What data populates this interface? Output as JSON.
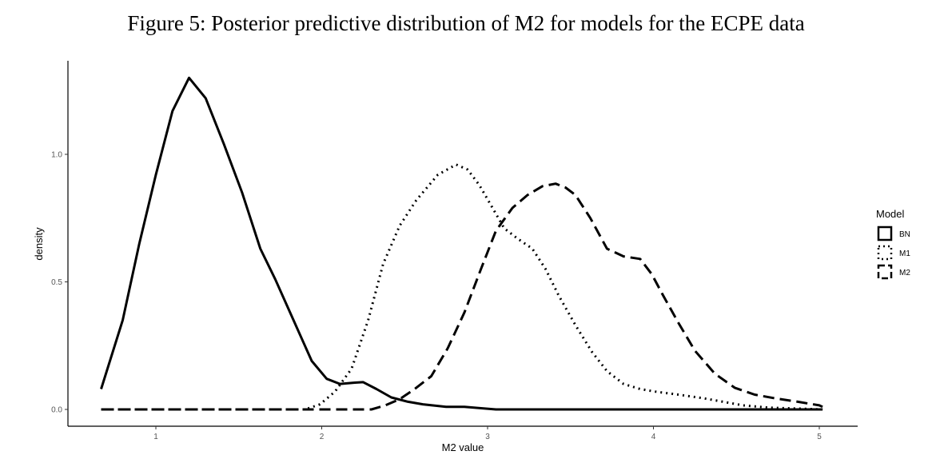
{
  "chart_data": {
    "type": "line",
    "title": "Figure 5: Posterior predictive distribution of M2 for models for the ECPE data",
    "xlabel": "M2 value",
    "ylabel": "density",
    "xlim": [
      0.55,
      5.25
    ],
    "ylim": [
      -0.065,
      1.38
    ],
    "xticks": [
      "1",
      "2",
      "3",
      "4",
      "5"
    ],
    "yticks": [
      "0.0",
      "0.5",
      "1.0"
    ],
    "grid": false,
    "legend": {
      "title": "Model",
      "placement": "right",
      "entries": [
        "BN",
        "M1",
        "M2"
      ]
    },
    "series": [
      {
        "name": "BN",
        "style": "solid",
        "points": [
          [
            0.67,
            0.08
          ],
          [
            0.8,
            0.35
          ],
          [
            0.9,
            0.65
          ],
          [
            1.0,
            0.92
          ],
          [
            1.1,
            1.17
          ],
          [
            1.2,
            1.3
          ],
          [
            1.3,
            1.22
          ],
          [
            1.41,
            1.04
          ],
          [
            1.52,
            0.85
          ],
          [
            1.63,
            0.63
          ],
          [
            1.72,
            0.51
          ],
          [
            1.83,
            0.35
          ],
          [
            1.94,
            0.19
          ],
          [
            2.03,
            0.12
          ],
          [
            2.11,
            0.1
          ],
          [
            2.2,
            0.105
          ],
          [
            2.25,
            0.107
          ],
          [
            2.33,
            0.08
          ],
          [
            2.42,
            0.047
          ],
          [
            2.52,
            0.03
          ],
          [
            2.61,
            0.02
          ],
          [
            2.75,
            0.01
          ],
          [
            2.86,
            0.01
          ],
          [
            3.05,
            0.0
          ],
          [
            5.02,
            0.0
          ]
        ]
      },
      {
        "name": "M1",
        "style": "dotted",
        "points": [
          [
            0.67,
            0.0
          ],
          [
            1.9,
            0.0
          ],
          [
            1.99,
            0.02
          ],
          [
            2.08,
            0.07
          ],
          [
            2.18,
            0.16
          ],
          [
            2.28,
            0.35
          ],
          [
            2.37,
            0.57
          ],
          [
            2.47,
            0.72
          ],
          [
            2.57,
            0.82
          ],
          [
            2.7,
            0.92
          ],
          [
            2.81,
            0.96
          ],
          [
            2.88,
            0.94
          ],
          [
            2.95,
            0.88
          ],
          [
            3.03,
            0.79
          ],
          [
            3.1,
            0.71
          ],
          [
            3.18,
            0.67
          ],
          [
            3.27,
            0.63
          ],
          [
            3.35,
            0.55
          ],
          [
            3.43,
            0.445
          ],
          [
            3.53,
            0.33
          ],
          [
            3.63,
            0.225
          ],
          [
            3.72,
            0.15
          ],
          [
            3.82,
            0.1
          ],
          [
            3.92,
            0.08
          ],
          [
            4.01,
            0.07
          ],
          [
            4.15,
            0.058
          ],
          [
            4.3,
            0.044
          ],
          [
            4.42,
            0.03
          ],
          [
            4.54,
            0.016
          ],
          [
            4.7,
            0.007
          ],
          [
            4.88,
            0.003
          ],
          [
            5.02,
            0.0
          ]
        ]
      },
      {
        "name": "M2",
        "style": "dashed",
        "points": [
          [
            0.67,
            0.0
          ],
          [
            2.3,
            0.0
          ],
          [
            2.38,
            0.015
          ],
          [
            2.47,
            0.04
          ],
          [
            2.56,
            0.08
          ],
          [
            2.66,
            0.13
          ],
          [
            2.76,
            0.24
          ],
          [
            2.86,
            0.38
          ],
          [
            2.96,
            0.55
          ],
          [
            3.05,
            0.7
          ],
          [
            3.15,
            0.79
          ],
          [
            3.24,
            0.84
          ],
          [
            3.33,
            0.875
          ],
          [
            3.41,
            0.885
          ],
          [
            3.47,
            0.87
          ],
          [
            3.53,
            0.84
          ],
          [
            3.62,
            0.75
          ],
          [
            3.72,
            0.63
          ],
          [
            3.82,
            0.6
          ],
          [
            3.92,
            0.59
          ],
          [
            3.99,
            0.53
          ],
          [
            4.06,
            0.445
          ],
          [
            4.15,
            0.34
          ],
          [
            4.25,
            0.23
          ],
          [
            4.37,
            0.14
          ],
          [
            4.49,
            0.085
          ],
          [
            4.61,
            0.058
          ],
          [
            4.73,
            0.044
          ],
          [
            4.87,
            0.03
          ],
          [
            5.0,
            0.016
          ],
          [
            5.02,
            0.01
          ]
        ]
      }
    ]
  }
}
